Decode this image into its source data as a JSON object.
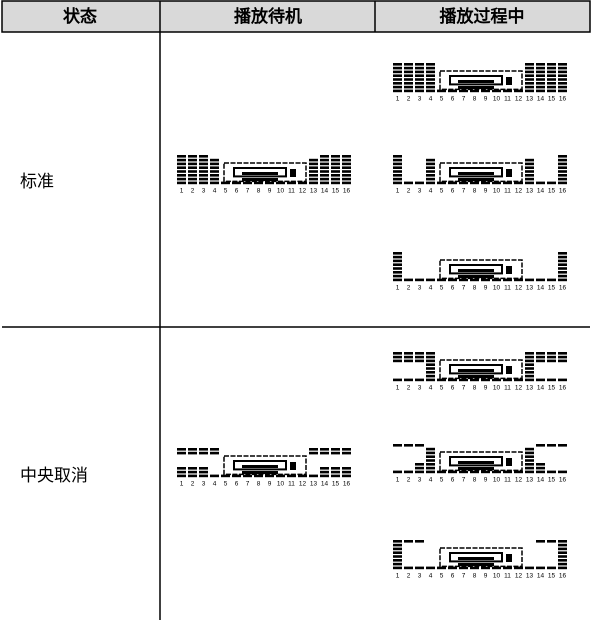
{
  "table": {
    "header": [
      "状态",
      "播放待机",
      "播放过程中"
    ],
    "rows": [
      {
        "label": "标准"
      },
      {
        "label": "中央取消"
      }
    ]
  },
  "display_scale": [
    "1",
    "2",
    "3",
    "4",
    "5",
    "6",
    "7",
    "8",
    "9",
    "10",
    "11",
    "12",
    "13",
    "14",
    "15",
    "16"
  ]
}
